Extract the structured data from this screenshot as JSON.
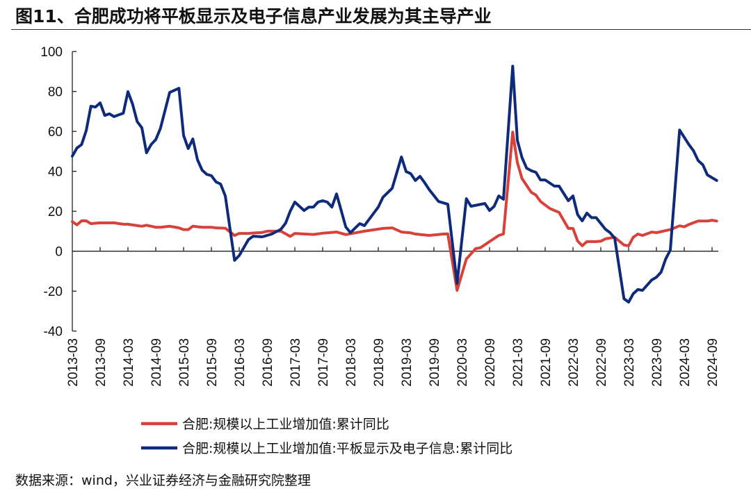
{
  "title": "图11、合肥成功将平板显示及电子信息产业发展为其主导产业",
  "source": "数据来源：wind，兴业证券经济与金融研究院整理",
  "chart_data": {
    "type": "line",
    "title": "图11、合肥成功将平板显示及电子信息产业发展为其主导产业",
    "xlabel": "",
    "ylabel": "",
    "ylim": [
      -40,
      100
    ],
    "yticks": [
      "100",
      "80",
      "60",
      "40",
      "20",
      "0",
      "-20",
      "-40"
    ],
    "xticks": [
      "2013-03",
      "2013-09",
      "2014-03",
      "2014-09",
      "2015-03",
      "2015-09",
      "2016-03",
      "2016-09",
      "2017-03",
      "2017-09",
      "2018-03",
      "2018-09",
      "2019-03",
      "2019-09",
      "2020-03",
      "2020-09",
      "2021-03",
      "2021-09",
      "2022-03",
      "2022-09",
      "2023-03",
      "2023-09",
      "2024-03",
      "2024-09"
    ],
    "grid": false,
    "legend_position": "bottom",
    "series": [
      {
        "name": "合肥:规模以上工业增加值:累计同比",
        "color": "#d9403a",
        "points": [
          [
            "2013-03",
            14.8
          ],
          [
            "2013-04",
            13.2
          ],
          [
            "2013-05",
            15.2
          ],
          [
            "2013-06",
            15.2
          ],
          [
            "2013-07",
            13.8
          ],
          [
            "2013-09",
            14.2
          ],
          [
            "2013-12",
            14.2
          ],
          [
            "2014-02",
            13.5
          ],
          [
            "2014-03",
            13.5
          ],
          [
            "2014-06",
            12.5
          ],
          [
            "2014-07",
            13.0
          ],
          [
            "2014-09",
            12.0
          ],
          [
            "2014-10",
            12.0
          ],
          [
            "2014-12",
            12.5
          ],
          [
            "2015-02",
            11.7
          ],
          [
            "2015-03",
            10.8
          ],
          [
            "2015-04",
            10.8
          ],
          [
            "2015-05",
            12.5
          ],
          [
            "2015-07",
            12.0
          ],
          [
            "2015-09",
            12.0
          ],
          [
            "2015-10",
            11.7
          ],
          [
            "2015-12",
            11.5
          ],
          [
            "2016-02",
            7.9
          ],
          [
            "2016-03",
            8.9
          ],
          [
            "2016-05",
            8.9
          ],
          [
            "2016-06",
            9.1
          ],
          [
            "2016-08",
            9.4
          ],
          [
            "2016-09",
            10.0
          ],
          [
            "2016-12",
            10.0
          ],
          [
            "2017-02",
            7.4
          ],
          [
            "2017-03",
            8.9
          ],
          [
            "2017-07",
            8.4
          ],
          [
            "2017-09",
            9.0
          ],
          [
            "2017-12",
            9.6
          ],
          [
            "2018-02",
            8.3
          ],
          [
            "2018-04",
            9.2
          ],
          [
            "2018-06",
            10.0
          ],
          [
            "2018-10",
            11.4
          ],
          [
            "2018-12",
            11.7
          ],
          [
            "2019-02",
            9.6
          ],
          [
            "2019-04",
            9.2
          ],
          [
            "2019-05",
            8.6
          ],
          [
            "2019-08",
            7.9
          ],
          [
            "2019-11",
            8.6
          ],
          [
            "2019-12",
            8.7
          ],
          [
            "2020-02",
            -19.6
          ],
          [
            "2020-04",
            -3.9
          ],
          [
            "2020-06",
            1.3
          ],
          [
            "2020-07",
            1.7
          ],
          [
            "2020-09",
            4.8
          ],
          [
            "2020-11",
            7.9
          ],
          [
            "2020-12",
            8.6
          ],
          [
            "2021-02",
            59.7
          ],
          [
            "2021-03",
            44.4
          ],
          [
            "2021-04",
            36.4
          ],
          [
            "2021-06",
            29.5
          ],
          [
            "2021-07",
            28.1
          ],
          [
            "2021-08",
            24.9
          ],
          [
            "2021-10",
            21.4
          ],
          [
            "2021-11",
            20.4
          ],
          [
            "2021-12",
            19.4
          ],
          [
            "2022-02",
            11.4
          ],
          [
            "2022-03",
            11.4
          ],
          [
            "2022-04",
            5.1
          ],
          [
            "2022-05",
            2.7
          ],
          [
            "2022-06",
            4.8
          ],
          [
            "2022-08",
            4.8
          ],
          [
            "2022-09",
            5.0
          ],
          [
            "2022-10",
            6.2
          ],
          [
            "2022-12",
            7.0
          ],
          [
            "2023-02",
            3.1
          ],
          [
            "2023-03",
            2.7
          ],
          [
            "2023-04",
            7.0
          ],
          [
            "2023-05",
            8.6
          ],
          [
            "2023-06",
            7.9
          ],
          [
            "2023-08",
            9.6
          ],
          [
            "2023-09",
            9.3
          ],
          [
            "2023-12",
            10.8
          ],
          [
            "2024-02",
            12.7
          ],
          [
            "2024-03",
            12.2
          ],
          [
            "2024-04",
            13.4
          ],
          [
            "2024-06",
            15.1
          ],
          [
            "2024-08",
            15.1
          ],
          [
            "2024-09",
            15.5
          ],
          [
            "2024-10",
            15.1
          ]
        ]
      },
      {
        "name": "合肥:规模以上工业增加值:平板显示及电子信息:累计同比",
        "color": "#0e2a7a",
        "points": [
          [
            "2013-03",
            47.6
          ],
          [
            "2013-04",
            51.7
          ],
          [
            "2013-05",
            53.4
          ],
          [
            "2013-06",
            60.4
          ],
          [
            "2013-07",
            72.6
          ],
          [
            "2013-08",
            72.2
          ],
          [
            "2013-09",
            74.3
          ],
          [
            "2013-10",
            68.0
          ],
          [
            "2013-11",
            68.8
          ],
          [
            "2013-12",
            67.4
          ],
          [
            "2014-02",
            69.1
          ],
          [
            "2014-03",
            79.9
          ],
          [
            "2014-04",
            73.6
          ],
          [
            "2014-05",
            64.9
          ],
          [
            "2014-06",
            61.8
          ],
          [
            "2014-07",
            49.3
          ],
          [
            "2014-08",
            53.4
          ],
          [
            "2014-09",
            55.9
          ],
          [
            "2014-10",
            61.5
          ],
          [
            "2014-12",
            79.5
          ],
          [
            "2015-02",
            81.6
          ],
          [
            "2015-03",
            58.0
          ],
          [
            "2015-04",
            51.4
          ],
          [
            "2015-05",
            56.2
          ],
          [
            "2015-06",
            45.8
          ],
          [
            "2015-07",
            40.6
          ],
          [
            "2015-08",
            38.5
          ],
          [
            "2015-09",
            37.8
          ],
          [
            "2015-10",
            34.7
          ],
          [
            "2015-11",
            33.6
          ],
          [
            "2015-12",
            27.7
          ],
          [
            "2016-02",
            -4.6
          ],
          [
            "2016-03",
            -2.2
          ],
          [
            "2016-05",
            5.8
          ],
          [
            "2016-06",
            7.5
          ],
          [
            "2016-08",
            7.2
          ],
          [
            "2016-10",
            8.6
          ],
          [
            "2016-12",
            11.0
          ],
          [
            "2017-01",
            14.0
          ],
          [
            "2017-02",
            20.0
          ],
          [
            "2017-03",
            24.6
          ],
          [
            "2017-05",
            20.4
          ],
          [
            "2017-06",
            22.1
          ],
          [
            "2017-07",
            22.1
          ],
          [
            "2017-08",
            24.6
          ],
          [
            "2017-09",
            25.3
          ],
          [
            "2017-10",
            24.6
          ],
          [
            "2017-11",
            22.1
          ],
          [
            "2017-12",
            28.7
          ],
          [
            "2018-02",
            12.1
          ],
          [
            "2018-03",
            9.3
          ],
          [
            "2018-05",
            13.8
          ],
          [
            "2018-06",
            12.8
          ],
          [
            "2018-09",
            22.1
          ],
          [
            "2018-10",
            27.0
          ],
          [
            "2018-12",
            31.5
          ],
          [
            "2019-02",
            47.2
          ],
          [
            "2019-03",
            39.9
          ],
          [
            "2019-04",
            38.8
          ],
          [
            "2019-05",
            35.4
          ],
          [
            "2019-06",
            37.5
          ],
          [
            "2019-07",
            34.3
          ],
          [
            "2019-08",
            30.8
          ],
          [
            "2019-10",
            24.9
          ],
          [
            "2019-12",
            23.5
          ],
          [
            "2020-02",
            -16.1
          ],
          [
            "2020-04",
            26.3
          ],
          [
            "2020-05",
            22.5
          ],
          [
            "2020-08",
            23.9
          ],
          [
            "2020-09",
            20.4
          ],
          [
            "2020-10",
            22.5
          ],
          [
            "2020-11",
            27.7
          ],
          [
            "2020-12",
            26.0
          ],
          [
            "2021-02",
            92.7
          ],
          [
            "2021-03",
            55.5
          ],
          [
            "2021-04",
            46.9
          ],
          [
            "2021-05",
            41.6
          ],
          [
            "2021-06",
            40.3
          ],
          [
            "2021-07",
            39.5
          ],
          [
            "2021-08",
            35.7
          ],
          [
            "2021-09",
            35.7
          ],
          [
            "2021-11",
            32.6
          ],
          [
            "2021-12",
            32.6
          ],
          [
            "2022-02",
            25.3
          ],
          [
            "2022-03",
            27.7
          ],
          [
            "2022-04",
            18.3
          ],
          [
            "2022-05",
            15.2
          ],
          [
            "2022-06",
            19.1
          ],
          [
            "2022-07",
            16.8
          ],
          [
            "2022-08",
            16.8
          ],
          [
            "2022-10",
            11.0
          ],
          [
            "2022-11",
            9.3
          ],
          [
            "2022-12",
            6.5
          ],
          [
            "2023-02",
            -23.8
          ],
          [
            "2023-03",
            -25.5
          ],
          [
            "2023-04",
            -21.3
          ],
          [
            "2023-05",
            -19.2
          ],
          [
            "2023-06",
            -19.6
          ],
          [
            "2023-08",
            -14.4
          ],
          [
            "2023-09",
            -13.0
          ],
          [
            "2023-10",
            -10.5
          ],
          [
            "2023-11",
            -3.9
          ],
          [
            "2023-12",
            0.6
          ],
          [
            "2024-02",
            60.7
          ],
          [
            "2024-04",
            53.4
          ],
          [
            "2024-05",
            50.3
          ],
          [
            "2024-06",
            45.4
          ],
          [
            "2024-07",
            43.3
          ],
          [
            "2024-08",
            38.2
          ],
          [
            "2024-10",
            35.4
          ]
        ]
      }
    ]
  }
}
